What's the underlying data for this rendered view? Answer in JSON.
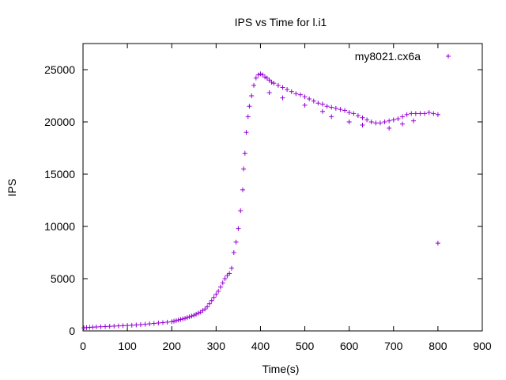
{
  "chart_data": {
    "type": "scatter",
    "title": "IPS vs Time for l.i1",
    "xlabel": "Time(s)",
    "ylabel": "IPS",
    "xlim": [
      0,
      900
    ],
    "ylim": [
      0,
      27500
    ],
    "x_ticks": [
      0,
      100,
      200,
      300,
      400,
      500,
      600,
      700,
      800,
      900
    ],
    "y_ticks": [
      0,
      5000,
      10000,
      15000,
      20000,
      25000
    ],
    "grid": false,
    "legend_position": "top-right",
    "marker": "plus",
    "series": [
      {
        "name": "my8021.cx6a",
        "color": "#9400d3",
        "points": [
          [
            2,
            300
          ],
          [
            8,
            320
          ],
          [
            15,
            340
          ],
          [
            22,
            360
          ],
          [
            30,
            380
          ],
          [
            40,
            400
          ],
          [
            50,
            420
          ],
          [
            60,
            440
          ],
          [
            70,
            460
          ],
          [
            80,
            480
          ],
          [
            90,
            500
          ],
          [
            100,
            520
          ],
          [
            110,
            540
          ],
          [
            120,
            570
          ],
          [
            130,
            600
          ],
          [
            140,
            640
          ],
          [
            150,
            680
          ],
          [
            160,
            720
          ],
          [
            170,
            760
          ],
          [
            180,
            800
          ],
          [
            190,
            840
          ],
          [
            200,
            880
          ],
          [
            205,
            930
          ],
          [
            210,
            980
          ],
          [
            215,
            1050
          ],
          [
            220,
            1100
          ],
          [
            225,
            1150
          ],
          [
            230,
            1200
          ],
          [
            235,
            1280
          ],
          [
            240,
            1350
          ],
          [
            245,
            1420
          ],
          [
            250,
            1500
          ],
          [
            255,
            1600
          ],
          [
            260,
            1700
          ],
          [
            265,
            1800
          ],
          [
            270,
            1950
          ],
          [
            275,
            2100
          ],
          [
            280,
            2300
          ],
          [
            285,
            2600
          ],
          [
            290,
            2900
          ],
          [
            295,
            3200
          ],
          [
            300,
            3500
          ],
          [
            305,
            3800
          ],
          [
            310,
            4200
          ],
          [
            315,
            4600
          ],
          [
            320,
            5000
          ],
          [
            325,
            5300
          ],
          [
            330,
            5500
          ],
          [
            335,
            6000
          ],
          [
            340,
            7500
          ],
          [
            345,
            8500
          ],
          [
            350,
            9800
          ],
          [
            355,
            11500
          ],
          [
            360,
            13500
          ],
          [
            362,
            15500
          ],
          [
            365,
            17000
          ],
          [
            368,
            19000
          ],
          [
            372,
            20500
          ],
          [
            375,
            21500
          ],
          [
            380,
            22500
          ],
          [
            385,
            23500
          ],
          [
            390,
            24200
          ],
          [
            395,
            24500
          ],
          [
            400,
            24600
          ],
          [
            405,
            24500
          ],
          [
            410,
            24300
          ],
          [
            415,
            24200
          ],
          [
            420,
            24000
          ],
          [
            425,
            23800
          ],
          [
            430,
            23700
          ],
          [
            440,
            23500
          ],
          [
            450,
            23300
          ],
          [
            460,
            23100
          ],
          [
            470,
            22900
          ],
          [
            480,
            22700
          ],
          [
            490,
            22600
          ],
          [
            500,
            22400
          ],
          [
            510,
            22200
          ],
          [
            520,
            22000
          ],
          [
            530,
            21800
          ],
          [
            540,
            21700
          ],
          [
            550,
            21500
          ],
          [
            560,
            21400
          ],
          [
            570,
            21300
          ],
          [
            580,
            21200
          ],
          [
            590,
            21100
          ],
          [
            600,
            20900
          ],
          [
            610,
            20800
          ],
          [
            620,
            20600
          ],
          [
            630,
            20400
          ],
          [
            640,
            20200
          ],
          [
            650,
            20000
          ],
          [
            660,
            19900
          ],
          [
            670,
            19900
          ],
          [
            680,
            20000
          ],
          [
            690,
            20100
          ],
          [
            700,
            20200
          ],
          [
            710,
            20300
          ],
          [
            720,
            20500
          ],
          [
            730,
            20700
          ],
          [
            740,
            20800
          ],
          [
            750,
            20800
          ],
          [
            760,
            20800
          ],
          [
            770,
            20800
          ],
          [
            780,
            20900
          ],
          [
            790,
            20800
          ],
          [
            800,
            20700
          ],
          [
            800,
            8400
          ],
          [
            420,
            22800
          ],
          [
            450,
            22300
          ],
          [
            500,
            21600
          ],
          [
            540,
            21000
          ],
          [
            560,
            20500
          ],
          [
            600,
            20000
          ],
          [
            630,
            19700
          ],
          [
            690,
            19400
          ],
          [
            720,
            19800
          ],
          [
            745,
            20100
          ]
        ]
      }
    ]
  }
}
